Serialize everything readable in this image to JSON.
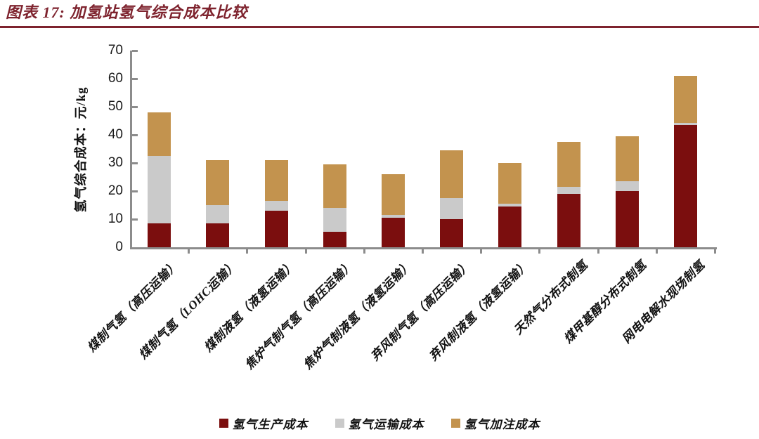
{
  "header": {
    "title": "图表 17: 加氢站氢气综合成本比较"
  },
  "chart_data": {
    "type": "bar",
    "stacked": true,
    "title": "加氢站氢气综合成本比较",
    "ylabel": "氢气综合成本：元/kg",
    "xlabel": "",
    "ylim": [
      0,
      70
    ],
    "yticks": [
      0,
      10,
      20,
      30,
      40,
      50,
      60,
      70
    ],
    "grid": false,
    "legend_position": "bottom",
    "categories": [
      "煤制气氢（高压运输）",
      "煤制气氢（LOHC运输）",
      "煤制液氢（液氢运输）",
      "焦炉气制气氢（高压运输）",
      "焦炉气制液氢（液氢运输）",
      "弃风制气氢（高压运输）",
      "弃风制液氢（液氢运输）",
      "天然气分布式制氢",
      "煤甲基醇分布式制氢",
      "网电电解水现场制氢"
    ],
    "series": [
      {
        "name": "氢气生产成本",
        "color": "#7B0E0E",
        "values": [
          8.5,
          8.5,
          13,
          5.5,
          10.5,
          10,
          14.5,
          19,
          20,
          43.5
        ]
      },
      {
        "name": "氢气运输成本",
        "color": "#CACACA",
        "values": [
          24,
          6.5,
          3.5,
          8.5,
          1,
          7.5,
          1,
          2.5,
          3.5,
          0.7
        ]
      },
      {
        "name": "氢气加注成本",
        "color": "#C3934E",
        "values": [
          15.5,
          16,
          14.5,
          15.5,
          14.5,
          17,
          14.5,
          16,
          16,
          16.8
        ]
      }
    ],
    "totals": [
      48,
      31,
      31,
      29.5,
      26,
      34.5,
      30,
      38,
      39.5,
      61
    ]
  },
  "colors": {
    "title_maroon": "#7E232E",
    "axis_grey": "#8C8C8C"
  }
}
